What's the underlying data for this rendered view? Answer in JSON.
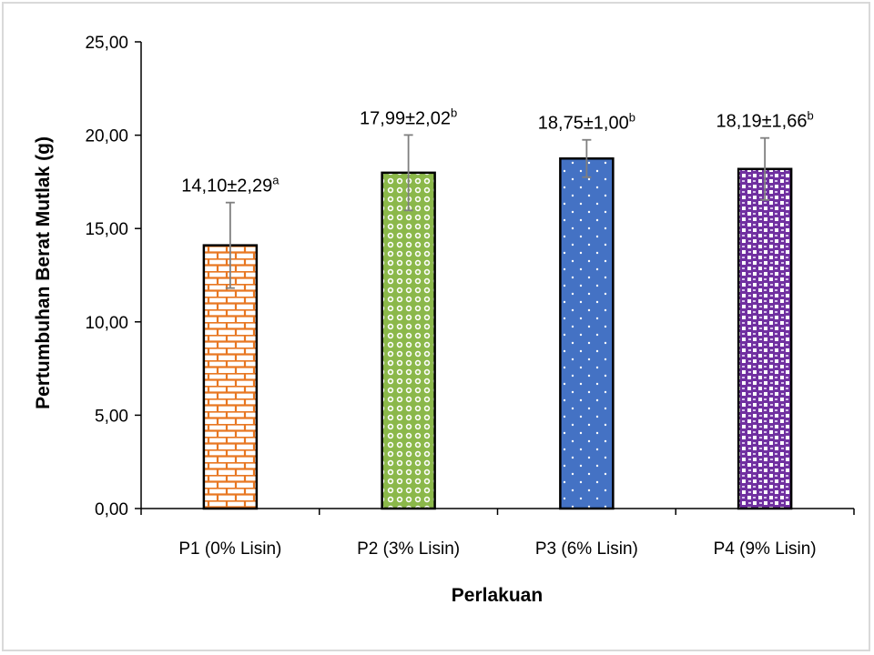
{
  "chart_data": {
    "type": "bar",
    "title": "",
    "xlabel": "Perlakuan",
    "ylabel": "Pertumbuhan Berat Mutlak (g)",
    "ylim": [
      0,
      25
    ],
    "yticks": [
      "0,00",
      "5,00",
      "10,00",
      "15,00",
      "20,00",
      "25,00"
    ],
    "grid": false,
    "categories": [
      "P1 (0% Lisin)",
      "P2 (3% Lisin)",
      "P3 (6% Lisin)",
      "P4 (9% Lisin)"
    ],
    "values": [
      14.1,
      17.99,
      18.75,
      18.19
    ],
    "errors": [
      2.29,
      2.02,
      1.0,
      1.66
    ],
    "labels": [
      {
        "text": "14,10±2,29",
        "sup": "a"
      },
      {
        "text": "17,99±2,02",
        "sup": "b"
      },
      {
        "text": "18,75±1,00",
        "sup": "b"
      },
      {
        "text": "18,19±1,66",
        "sup": "b"
      }
    ],
    "patterns": [
      "brick-pattern",
      "circle-pattern",
      "dot-pattern",
      "weave-pattern"
    ],
    "colors": [
      "#e87722",
      "#8bb84a",
      "#4472c4",
      "#7030a0"
    ]
  }
}
